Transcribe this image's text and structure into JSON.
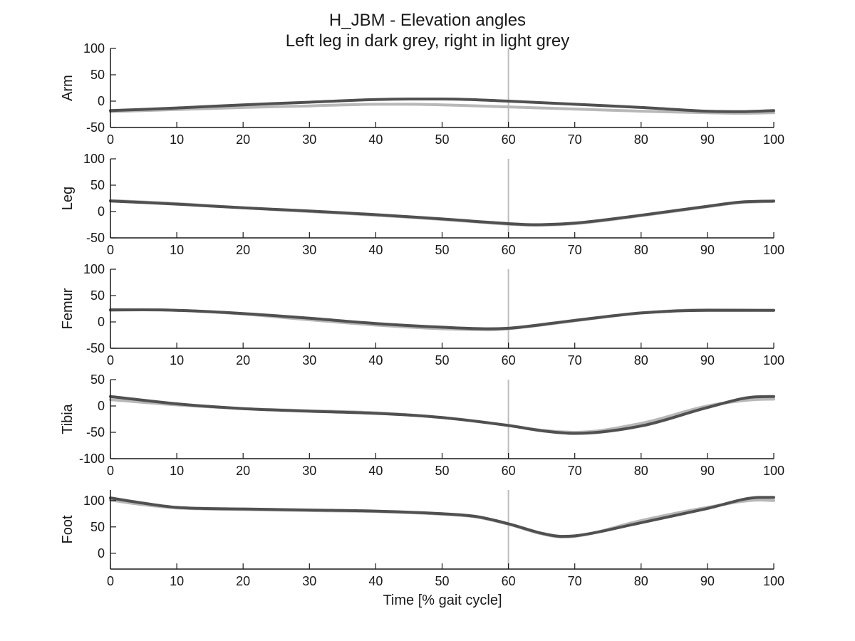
{
  "chart_data": {
    "type": "line",
    "title": "H_JBM - Elevation angles",
    "subtitle": "Left leg in dark grey, right in light grey",
    "xlabel": "Time [% gait cycle]",
    "xlim": [
      0,
      100
    ],
    "xticks": [
      0,
      10,
      20,
      30,
      40,
      50,
      60,
      70,
      80,
      90,
      100
    ],
    "vline_x": 60,
    "colors": {
      "left": "#505050",
      "right": "#b8b8b8",
      "vline": "#bdbdbd",
      "axis": "#1a1a1a"
    },
    "panels": [
      {
        "ylabel": "Arm",
        "ylim": [
          -50,
          100
        ],
        "yticks": [
          -50,
          0,
          50,
          100
        ],
        "x": [
          0,
          10,
          20,
          30,
          40,
          45,
          50,
          60,
          70,
          80,
          90,
          95,
          100
        ],
        "left": [
          -18,
          -13,
          -7,
          -2,
          3,
          4,
          4,
          0,
          -6,
          -12,
          -19,
          -20,
          -18
        ],
        "right": [
          -20,
          -16,
          -12,
          -9,
          -6,
          -6,
          -7,
          -11,
          -15,
          -19,
          -22,
          -23,
          -22
        ]
      },
      {
        "ylabel": "Leg",
        "ylim": [
          -50,
          100
        ],
        "yticks": [
          -50,
          0,
          50,
          100
        ],
        "x": [
          0,
          10,
          20,
          30,
          40,
          50,
          60,
          64,
          70,
          80,
          90,
          95,
          100
        ],
        "left": [
          20,
          14,
          7,
          1,
          -6,
          -14,
          -23,
          -25,
          -22,
          -7,
          10,
          18,
          20
        ],
        "right": [
          21,
          15,
          7,
          0,
          -7,
          -15,
          -24,
          -26,
          -23,
          -8,
          9,
          17,
          19
        ]
      },
      {
        "ylabel": "Femur",
        "ylim": [
          -50,
          100
        ],
        "yticks": [
          -50,
          0,
          50,
          100
        ],
        "x": [
          0,
          5,
          10,
          20,
          30,
          40,
          50,
          57,
          60,
          70,
          80,
          90,
          100
        ],
        "left": [
          23,
          23,
          22,
          16,
          7,
          -3,
          -10,
          -13,
          -12,
          3,
          17,
          22,
          22
        ],
        "right": [
          22,
          23,
          22,
          15,
          4,
          -6,
          -13,
          -15,
          -13,
          2,
          17,
          23,
          22
        ]
      },
      {
        "ylabel": "Tibia",
        "ylim": [
          -100,
          50
        ],
        "yticks": [
          -100,
          -50,
          0,
          50
        ],
        "x": [
          0,
          10,
          20,
          30,
          40,
          50,
          60,
          65,
          70,
          80,
          90,
          97,
          100
        ],
        "left": [
          18,
          4,
          -5,
          -10,
          -14,
          -22,
          -37,
          -47,
          -52,
          -38,
          -3,
          17,
          18
        ],
        "right": [
          12,
          2,
          -5,
          -9,
          -13,
          -22,
          -37,
          -46,
          -50,
          -33,
          0,
          12,
          13
        ]
      },
      {
        "ylabel": "Foot",
        "ylim": [
          -30,
          120
        ],
        "yticks": [
          0,
          50,
          100
        ],
        "x": [
          0,
          5,
          10,
          20,
          30,
          40,
          50,
          55,
          60,
          65,
          68,
          70,
          80,
          90,
          98,
          100
        ],
        "left": [
          105,
          95,
          87,
          84,
          82,
          80,
          75,
          70,
          56,
          38,
          32,
          33,
          58,
          85,
          106,
          106
        ],
        "right": [
          101,
          92,
          86,
          83,
          81,
          79,
          74,
          69,
          55,
          37,
          31,
          32,
          62,
          87,
          101,
          100
        ]
      }
    ]
  }
}
